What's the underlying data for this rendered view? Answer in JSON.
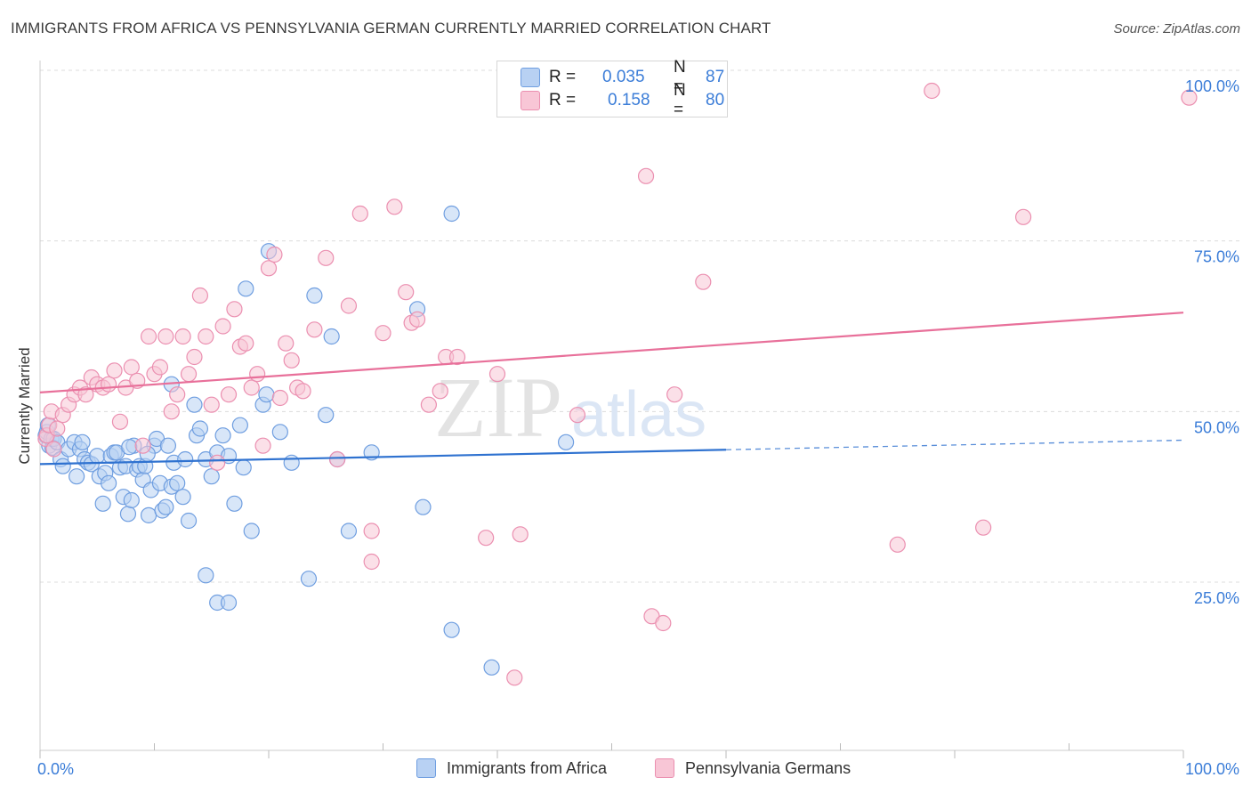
{
  "title": "IMMIGRANTS FROM AFRICA VS PENNSYLVANIA GERMAN CURRENTLY MARRIED CORRELATION CHART",
  "source": "Source: ZipAtlas.com",
  "watermark": {
    "zip": "ZIP",
    "atlas": "atlas"
  },
  "legend_top": {
    "rows": [
      {
        "r_label": "R =",
        "r_value": "0.035",
        "n_label": "N =",
        "n_value": "87"
      },
      {
        "r_label": "R =",
        "r_value": "0.158",
        "n_label": "N =",
        "n_value": "80"
      }
    ]
  },
  "legend_bottom": {
    "items": [
      {
        "label": "Immigrants from Africa"
      },
      {
        "label": "Pennsylvania Germans"
      }
    ]
  },
  "colors": {
    "blue_fill": "#b8d1f3",
    "blue_stroke": "#6f9ee0",
    "blue_line": "#2f72d0",
    "pink_fill": "#f8c6d6",
    "pink_stroke": "#eb8fb0",
    "pink_line": "#e8709a",
    "axis_text": "#3b7dd8",
    "grid": "#dcdcdc"
  },
  "chart_data": {
    "type": "scatter",
    "title": "IMMIGRANTS FROM AFRICA VS PENNSYLVANIA GERMAN CURRENTLY MARRIED CORRELATION CHART",
    "xlabel": "",
    "ylabel": "Currently Married",
    "xlim": [
      0,
      100
    ],
    "ylim": [
      0,
      105
    ],
    "x_tick_labels": [
      "0.0%",
      "100.0%"
    ],
    "y_tick_labels": [
      "25.0%",
      "50.0%",
      "75.0%",
      "100.0%"
    ],
    "y_ticks": [
      25,
      50,
      75,
      100
    ],
    "grid": true,
    "legend_position": "top-center",
    "series": [
      {
        "name": "Immigrants from Africa",
        "r": 0.035,
        "n": 87,
        "trend": {
          "x0": 0,
          "y0": 42.3,
          "x1": 60,
          "y1": 44.4,
          "dash_x1": 100,
          "dash_y1": 45.8
        },
        "points": [
          [
            0.5,
            46.5
          ],
          [
            0.6,
            47.0
          ],
          [
            0.7,
            48.0
          ],
          [
            0.8,
            45.0
          ],
          [
            1.0,
            46.0
          ],
          [
            1.1,
            44.7
          ],
          [
            1.2,
            46.0
          ],
          [
            1.5,
            45.5
          ],
          [
            1.8,
            43.0
          ],
          [
            2.0,
            42.0
          ],
          [
            2.5,
            44.5
          ],
          [
            3.0,
            45.5
          ],
          [
            3.2,
            40.5
          ],
          [
            3.5,
            44.5
          ],
          [
            3.7,
            45.5
          ],
          [
            3.9,
            43.0
          ],
          [
            4.2,
            42.5
          ],
          [
            4.5,
            42.3
          ],
          [
            5.0,
            43.5
          ],
          [
            5.2,
            40.5
          ],
          [
            5.5,
            36.5
          ],
          [
            5.7,
            41.0
          ],
          [
            6.0,
            39.5
          ],
          [
            6.2,
            43.5
          ],
          [
            6.5,
            44.0
          ],
          [
            6.7,
            44.0
          ],
          [
            7.0,
            41.8
          ],
          [
            7.3,
            37.5
          ],
          [
            7.5,
            42.0
          ],
          [
            7.7,
            35.0
          ],
          [
            8.0,
            37.0
          ],
          [
            8.2,
            45.0
          ],
          [
            8.5,
            41.5
          ],
          [
            8.7,
            42.0
          ],
          [
            9.0,
            40.0
          ],
          [
            9.2,
            42.0
          ],
          [
            9.5,
            34.8
          ],
          [
            9.7,
            38.5
          ],
          [
            10.0,
            45.0
          ],
          [
            10.2,
            46.0
          ],
          [
            10.5,
            39.5
          ],
          [
            10.7,
            35.5
          ],
          [
            11.0,
            36.0
          ],
          [
            11.2,
            45.0
          ],
          [
            11.5,
            39.0
          ],
          [
            11.7,
            42.5
          ],
          [
            12.0,
            39.5
          ],
          [
            12.5,
            37.5
          ],
          [
            12.7,
            43.0
          ],
          [
            13.0,
            34.0
          ],
          [
            13.5,
            51.0
          ],
          [
            13.7,
            46.5
          ],
          [
            14.0,
            47.5
          ],
          [
            14.5,
            43.0
          ],
          [
            15.0,
            40.5
          ],
          [
            15.5,
            44.0
          ],
          [
            16.0,
            46.5
          ],
          [
            16.5,
            43.5
          ],
          [
            17.0,
            36.5
          ],
          [
            17.5,
            48.0
          ],
          [
            17.8,
            41.8
          ],
          [
            18.0,
            68.0
          ],
          [
            18.5,
            32.5
          ],
          [
            19.5,
            51.0
          ],
          [
            20.0,
            73.5
          ],
          [
            22.0,
            42.5
          ],
          [
            23.5,
            25.5
          ],
          [
            24.0,
            67.0
          ],
          [
            25.0,
            49.5
          ],
          [
            25.5,
            61.0
          ],
          [
            26.0,
            43.0
          ],
          [
            27.0,
            32.5
          ],
          [
            29.0,
            44.0
          ],
          [
            33.0,
            65.0
          ],
          [
            33.5,
            36.0
          ],
          [
            36.0,
            18.0
          ],
          [
            36.0,
            79.0
          ],
          [
            39.5,
            12.5
          ],
          [
            46.0,
            45.5
          ],
          [
            19.8,
            52.5
          ],
          [
            14.5,
            26.0
          ],
          [
            15.5,
            22.0
          ],
          [
            16.5,
            22.0
          ],
          [
            11.5,
            54.0
          ],
          [
            21.0,
            47.0
          ],
          [
            7.8,
            44.8
          ],
          [
            9.4,
            43.8
          ]
        ]
      },
      {
        "name": "Pennsylvania Germans",
        "r": 0.158,
        "n": 80,
        "trend": {
          "x0": 0,
          "y0": 52.8,
          "x1": 100,
          "y1": 64.5
        },
        "points": [
          [
            0.5,
            46.0
          ],
          [
            0.6,
            46.5
          ],
          [
            0.8,
            48.0
          ],
          [
            1.0,
            50.0
          ],
          [
            1.2,
            44.5
          ],
          [
            1.5,
            47.5
          ],
          [
            2.0,
            49.5
          ],
          [
            2.5,
            51.0
          ],
          [
            3.0,
            52.5
          ],
          [
            3.5,
            53.5
          ],
          [
            4.0,
            52.5
          ],
          [
            4.5,
            55.0
          ],
          [
            5.0,
            54.0
          ],
          [
            5.5,
            53.5
          ],
          [
            6.0,
            54.0
          ],
          [
            6.5,
            56.0
          ],
          [
            7.0,
            48.5
          ],
          [
            7.5,
            53.5
          ],
          [
            8.0,
            56.5
          ],
          [
            8.5,
            54.5
          ],
          [
            9.0,
            45.0
          ],
          [
            9.5,
            61.0
          ],
          [
            10.0,
            55.5
          ],
          [
            10.5,
            56.5
          ],
          [
            11.0,
            61.0
          ],
          [
            11.5,
            50.0
          ],
          [
            12.0,
            52.5
          ],
          [
            12.5,
            61.0
          ],
          [
            13.0,
            55.5
          ],
          [
            13.5,
            58.0
          ],
          [
            14.0,
            67.0
          ],
          [
            14.5,
            61.0
          ],
          [
            15.0,
            51.0
          ],
          [
            15.5,
            42.5
          ],
          [
            16.0,
            62.5
          ],
          [
            16.5,
            52.5
          ],
          [
            17.0,
            65.0
          ],
          [
            17.5,
            59.5
          ],
          [
            18.0,
            60.0
          ],
          [
            18.5,
            53.5
          ],
          [
            19.0,
            55.5
          ],
          [
            19.5,
            45.0
          ],
          [
            20.0,
            71.0
          ],
          [
            20.5,
            73.0
          ],
          [
            21.0,
            52.0
          ],
          [
            21.5,
            60.0
          ],
          [
            22.0,
            57.5
          ],
          [
            22.5,
            53.5
          ],
          [
            23.0,
            53.0
          ],
          [
            24.0,
            62.0
          ],
          [
            25.0,
            72.5
          ],
          [
            26.0,
            43.0
          ],
          [
            27.0,
            65.5
          ],
          [
            28.0,
            79.0
          ],
          [
            29.0,
            32.5
          ],
          [
            30.0,
            61.5
          ],
          [
            31.0,
            80.0
          ],
          [
            32.0,
            67.5
          ],
          [
            32.5,
            63.0
          ],
          [
            33.0,
            63.5
          ],
          [
            34.0,
            51.0
          ],
          [
            35.0,
            53.0
          ],
          [
            35.5,
            58.0
          ],
          [
            36.5,
            58.0
          ],
          [
            39.0,
            31.5
          ],
          [
            40.0,
            55.5
          ],
          [
            41.5,
            11.0
          ],
          [
            42.0,
            32.0
          ],
          [
            47.0,
            49.5
          ],
          [
            53.0,
            84.5
          ],
          [
            53.5,
            20.0
          ],
          [
            54.5,
            19.0
          ],
          [
            55.5,
            52.5
          ],
          [
            58.0,
            69.0
          ],
          [
            75.0,
            30.5
          ],
          [
            78.0,
            97.0
          ],
          [
            82.5,
            33.0
          ],
          [
            86.0,
            78.5
          ],
          [
            100.5,
            96.0
          ],
          [
            29.0,
            28.0
          ]
        ]
      }
    ]
  }
}
